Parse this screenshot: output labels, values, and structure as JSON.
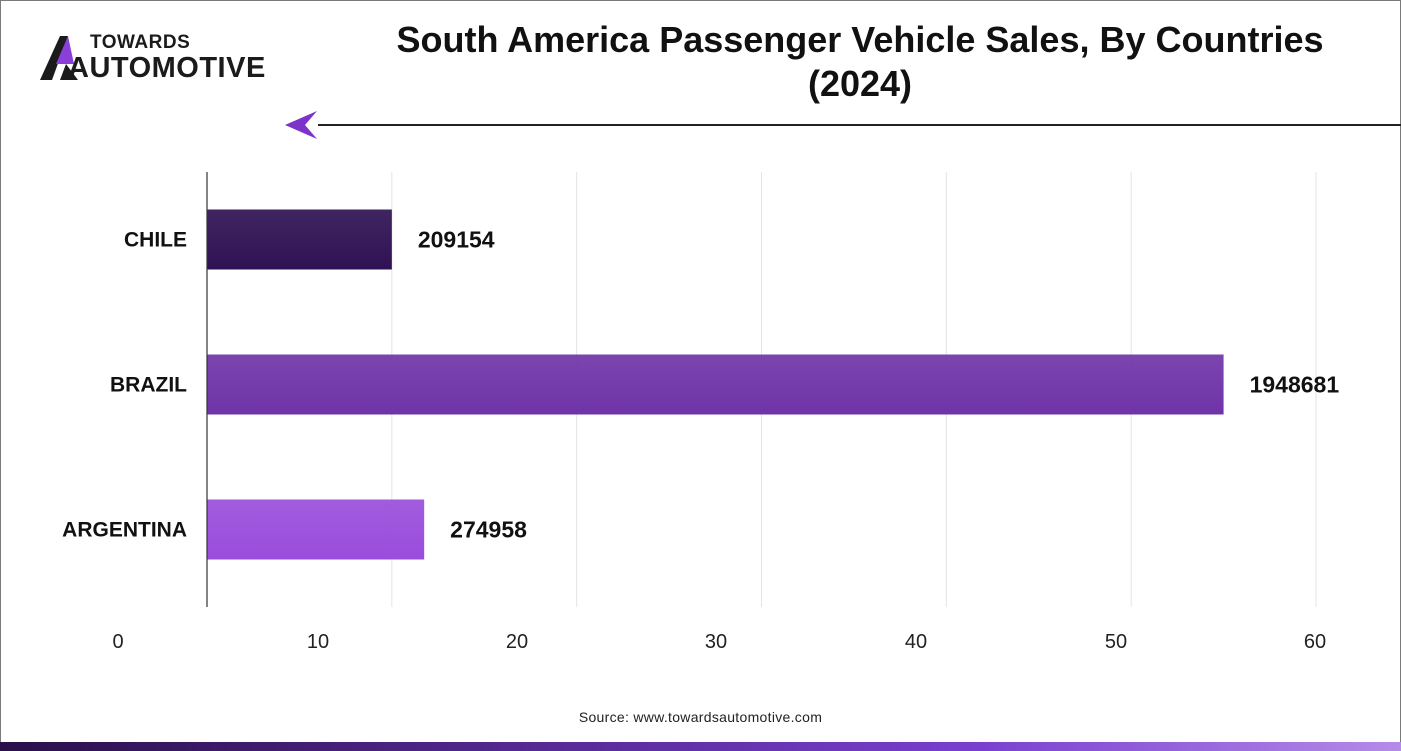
{
  "logo": {
    "line1": "TOWARDS",
    "line2": "AUTOMOTIVE"
  },
  "source": "Source: www.towardsautomotive.com",
  "colors": {
    "bar_chile": "#2f1254",
    "bar_brazil": "#6f34a8",
    "bar_argentina": "#9a4ddc",
    "grid": "#e4e4e4",
    "axis": "#333333"
  },
  "chart_data": {
    "type": "bar",
    "orientation": "horizontal",
    "title": "South America Passenger Vehicle Sales, By Countries (2024)",
    "categories": [
      "CHILE",
      "BRAZIL",
      "ARGENTINA"
    ],
    "values": [
      10,
      55,
      11.75
    ],
    "data_labels": [
      "209154",
      "1948681",
      "274958"
    ],
    "xlim": [
      0,
      60
    ],
    "xticks": [
      0,
      10,
      20,
      30,
      40,
      50,
      60
    ],
    "xtick_labels": [
      "0",
      "10",
      "20",
      "30",
      "40",
      "50",
      "60"
    ],
    "xlabel": "",
    "ylabel": "",
    "grid": true,
    "legend": "none"
  }
}
